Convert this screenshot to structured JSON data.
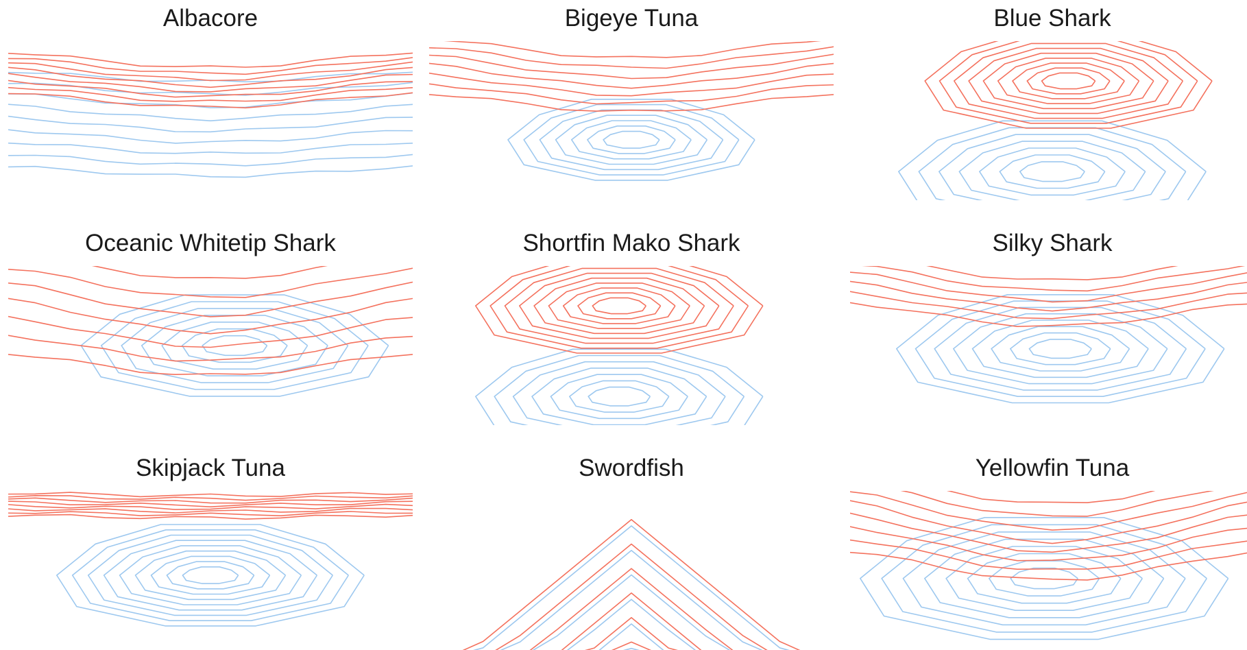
{
  "figure": {
    "colors": {
      "series_a": "#f4715d",
      "series_b": "#9dc8ef"
    },
    "layout": "3x3 small multiples"
  },
  "chart_data": [
    {
      "type": "contour",
      "title": "Albacore",
      "series": [
        {
          "color": "#f4715d",
          "pattern": "band",
          "center": [
            0.5,
            0.22
          ],
          "levels": 8,
          "spread": 0.18,
          "arch": 0.06
        },
        {
          "color": "#9dc8ef",
          "pattern": "band",
          "center": [
            0.5,
            0.48
          ],
          "levels": 9,
          "spread": 0.42,
          "arch": 0.05
        }
      ]
    },
    {
      "type": "contour",
      "title": "Bigeye Tuna",
      "series": [
        {
          "color": "#f4715d",
          "pattern": "band",
          "center": [
            0.5,
            0.18
          ],
          "levels": 7,
          "spread": 0.25,
          "arch": 0.08
        },
        {
          "color": "#9dc8ef",
          "pattern": "closed",
          "center": [
            0.5,
            0.62
          ],
          "levels": 7,
          "spread": 0.55
        }
      ]
    },
    {
      "type": "contour",
      "title": "Blue Shark",
      "series": [
        {
          "color": "#f4715d",
          "pattern": "closed",
          "center": [
            0.54,
            0.25
          ],
          "levels": 9,
          "spread": 0.65
        },
        {
          "color": "#9dc8ef",
          "pattern": "closed",
          "center": [
            0.5,
            0.82
          ],
          "levels": 7,
          "spread": 0.7
        }
      ]
    },
    {
      "type": "contour",
      "title": "Oceanic Whitetip Shark",
      "series": [
        {
          "color": "#f4715d",
          "pattern": "band",
          "center": [
            0.5,
            0.25
          ],
          "levels": 7,
          "spread": 0.45,
          "arch": 0.12
        },
        {
          "color": "#9dc8ef",
          "pattern": "closed",
          "center": [
            0.56,
            0.5
          ],
          "levels": 7,
          "spread": 0.7
        }
      ]
    },
    {
      "type": "contour",
      "title": "Shortfin Mako Shark",
      "series": [
        {
          "color": "#f4715d",
          "pattern": "closed",
          "center": [
            0.47,
            0.25
          ],
          "levels": 9,
          "spread": 0.65
        },
        {
          "color": "#9dc8ef",
          "pattern": "closed",
          "center": [
            0.47,
            0.82
          ],
          "levels": 7,
          "spread": 0.65
        }
      ]
    },
    {
      "type": "contour",
      "title": "Silky Shark",
      "series": [
        {
          "color": "#f4715d",
          "pattern": "band",
          "center": [
            0.5,
            0.12
          ],
          "levels": 6,
          "spread": 0.22,
          "arch": 0.1
        },
        {
          "color": "#9dc8ef",
          "pattern": "closed",
          "center": [
            0.52,
            0.52
          ],
          "levels": 8,
          "spread": 0.75
        }
      ]
    },
    {
      "type": "contour",
      "title": "Skipjack Tuna",
      "series": [
        {
          "color": "#f4715d",
          "pattern": "band",
          "center": [
            0.5,
            0.08
          ],
          "levels": 8,
          "spread": 0.1,
          "arch": 0.01
        },
        {
          "color": "#9dc8ef",
          "pattern": "closed",
          "center": [
            0.5,
            0.53
          ],
          "levels": 9,
          "spread": 0.7
        }
      ]
    },
    {
      "type": "contour",
      "title": "Swordfish",
      "series": [
        {
          "color": "#f4715d",
          "pattern": "peak",
          "center": [
            0.5,
            0.18
          ],
          "levels": 6,
          "spread": 0.95
        },
        {
          "color": "#9dc8ef",
          "pattern": "peak",
          "center": [
            0.5,
            0.22
          ],
          "levels": 7,
          "spread": 0.95
        }
      ]
    },
    {
      "type": "contour",
      "title": "Yellowfin Tuna",
      "series": [
        {
          "color": "#f4715d",
          "pattern": "band",
          "center": [
            0.5,
            0.18
          ],
          "levels": 8,
          "spread": 0.35,
          "arch": 0.14
        },
        {
          "color": "#9dc8ef",
          "pattern": "closed",
          "center": [
            0.48,
            0.55
          ],
          "levels": 8,
          "spread": 0.85
        }
      ]
    }
  ]
}
